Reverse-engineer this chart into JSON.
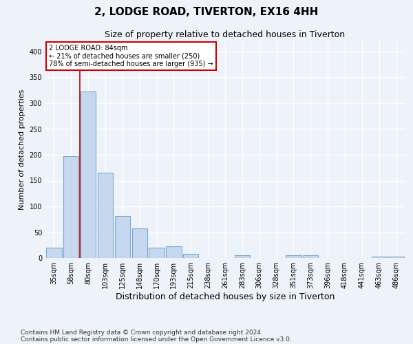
{
  "title": "2, LODGE ROAD, TIVERTON, EX16 4HH",
  "subtitle": "Size of property relative to detached houses in Tiverton",
  "xlabel": "Distribution of detached houses by size in Tiverton",
  "ylabel": "Number of detached properties",
  "categories": [
    "35sqm",
    "58sqm",
    "80sqm",
    "103sqm",
    "125sqm",
    "148sqm",
    "170sqm",
    "193sqm",
    "215sqm",
    "238sqm",
    "261sqm",
    "283sqm",
    "306sqm",
    "328sqm",
    "351sqm",
    "373sqm",
    "396sqm",
    "418sqm",
    "441sqm",
    "463sqm",
    "486sqm"
  ],
  "values": [
    20,
    197,
    322,
    165,
    82,
    57,
    20,
    23,
    8,
    0,
    0,
    6,
    0,
    0,
    5,
    5,
    0,
    0,
    0,
    3,
    3
  ],
  "bar_color": "#c5d8f0",
  "bar_edge_color": "#7aaad0",
  "reference_line_x": 1.5,
  "reference_line_color": "#cc0000",
  "annotation_text": "2 LODGE ROAD: 84sqm\n← 21% of detached houses are smaller (250)\n78% of semi-detached houses are larger (935) →",
  "annotation_box_color": "#ffffff",
  "annotation_box_edge_color": "#cc0000",
  "ylim": [
    0,
    420
  ],
  "yticks": [
    0,
    50,
    100,
    150,
    200,
    250,
    300,
    350,
    400
  ],
  "footnote_line1": "Contains HM Land Registry data © Crown copyright and database right 2024.",
  "footnote_line2": "Contains public sector information licensed under the Open Government Licence v3.0.",
  "background_color": "#eef2f9",
  "plot_background_color": "#eef2f9",
  "grid_color": "#ffffff",
  "title_fontsize": 11,
  "subtitle_fontsize": 9,
  "xlabel_fontsize": 9,
  "ylabel_fontsize": 8,
  "tick_fontsize": 7,
  "footnote_fontsize": 6.5
}
